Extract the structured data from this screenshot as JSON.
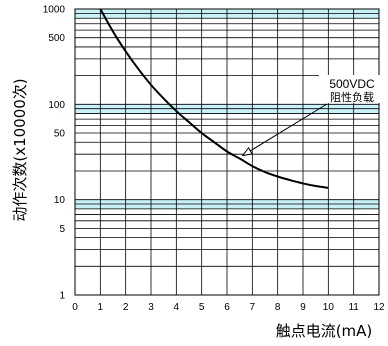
{
  "chart_data": {
    "type": "line",
    "xlabel": "触点电流(mA)",
    "ylabel": "动作次数(x10000次)",
    "x_ticks": [
      0,
      1,
      2,
      3,
      4,
      5,
      6,
      7,
      8,
      9,
      10,
      11,
      12
    ],
    "y_tick_labels": [
      {
        "value": 1000,
        "label": "1000"
      },
      {
        "value": 500,
        "label": "500"
      },
      {
        "value": 100,
        "label": "100"
      },
      {
        "value": 50,
        "label": "50"
      },
      {
        "value": 10,
        "label": "10"
      },
      {
        "value": 5,
        "label": "5"
      },
      {
        "value": 1,
        "label": "1"
      }
    ],
    "xlim": [
      0,
      12
    ],
    "ylim": [
      1,
      1000
    ],
    "y_scale": "log",
    "grid": true,
    "series": [
      {
        "x": [
          1,
          1.5,
          2,
          2.5,
          3,
          3.5,
          4,
          4.5,
          5,
          5.5,
          6,
          6.5,
          7,
          7.5,
          8,
          8.5,
          9,
          9.5,
          10
        ],
        "y": [
          1000,
          580,
          360,
          235,
          160,
          115,
          85,
          65,
          50,
          40,
          32,
          27,
          22.5,
          19.5,
          17.5,
          16,
          14.8,
          13.9,
          13.3
        ]
      }
    ],
    "annotation": {
      "line1": "500VDC",
      "line2": "阻性负载",
      "target": {
        "x": 6.5,
        "y": 27
      }
    },
    "colors": {
      "band": "#c9f1f8",
      "grid": "#000000",
      "curve": "#000000"
    }
  }
}
